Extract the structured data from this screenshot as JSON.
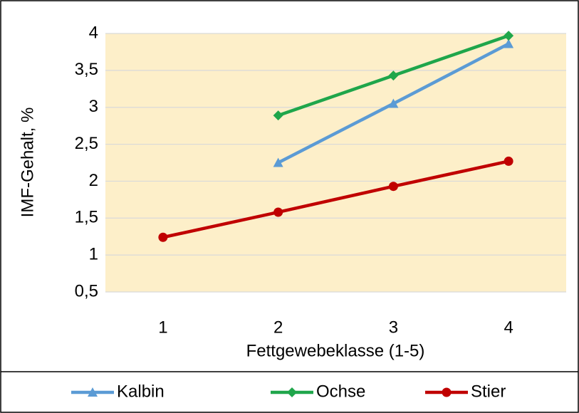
{
  "chart_data": {
    "type": "line",
    "categories": [
      "1",
      "2",
      "3",
      "4"
    ],
    "x_label": "Fettgewebeklasse (1-5)",
    "y_label": "IMF-Gehalt, %",
    "ylim": [
      0.5,
      4
    ],
    "yticks": [
      {
        "value": 0.5,
        "label": "0,5"
      },
      1,
      {
        "value": 1.5,
        "label": "1,5"
      },
      2,
      {
        "value": 2.5,
        "label": "2,5"
      },
      3,
      {
        "value": 3.5,
        "label": "3,5"
      },
      4
    ],
    "grid": true,
    "plot_background": "#fdefc9",
    "legend": "bottom",
    "series": [
      {
        "name": "Kalbin",
        "color": "#5b9bd5",
        "marker": "triangle",
        "values": [
          null,
          2.25,
          3.05,
          3.86
        ]
      },
      {
        "name": "Ochse",
        "color": "#1fa64b",
        "marker": "diamond",
        "values": [
          null,
          2.89,
          3.43,
          3.97
        ]
      },
      {
        "name": "Stier",
        "color": "#c00000",
        "marker": "circle",
        "values": [
          1.24,
          1.58,
          1.93,
          2.27
        ]
      }
    ]
  }
}
